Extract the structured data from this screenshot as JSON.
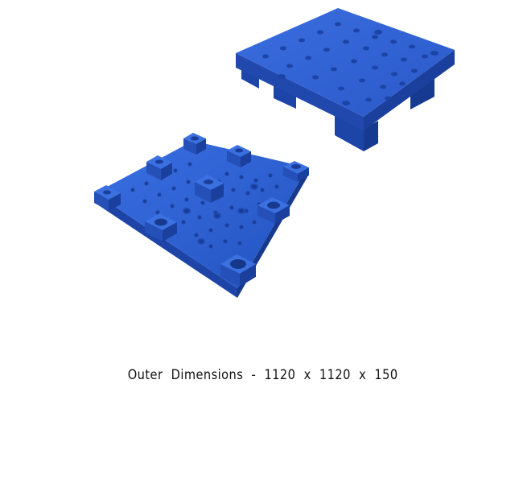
{
  "caption": "Outer Dimensions - 1120 x 1120 x 150",
  "colors": {
    "background": "#ffffff",
    "pallet_top": "#2f62d6",
    "pallet_shadow": "#1f47a8",
    "pallet_dark": "#173a8c",
    "text": "#111111"
  },
  "images": [
    {
      "subject": "blue plastic pallet, top view"
    },
    {
      "subject": "blue plastic pallet, underside view"
    }
  ]
}
